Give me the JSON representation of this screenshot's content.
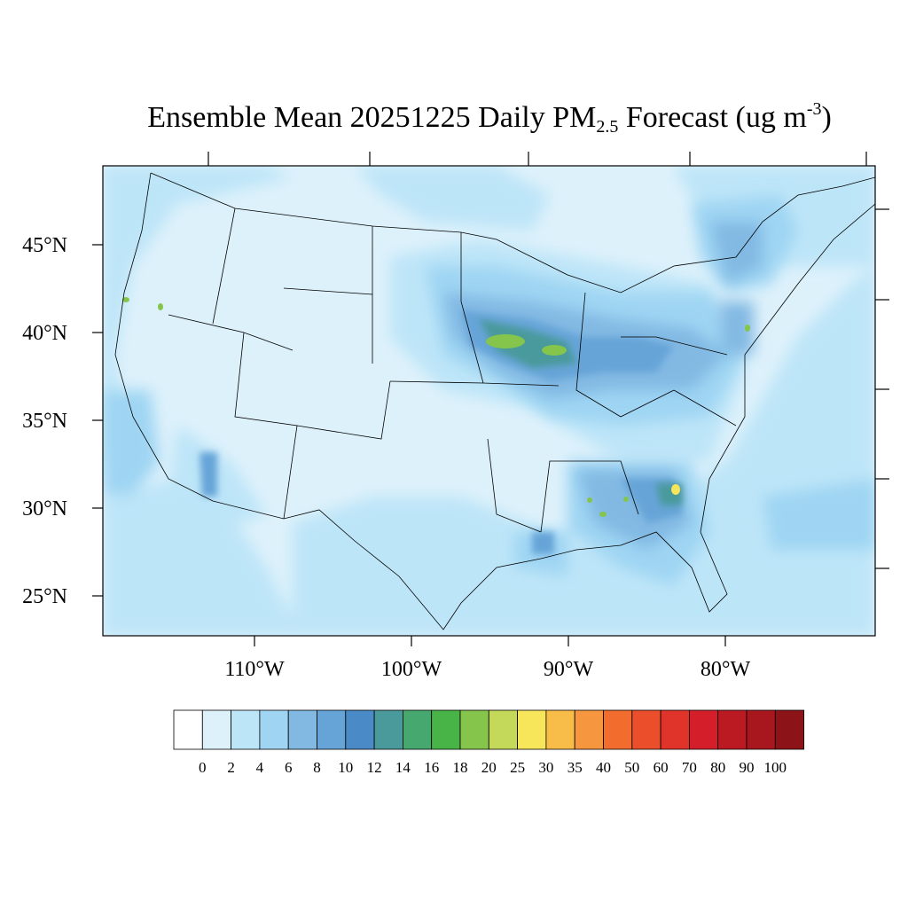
{
  "title": {
    "main": "Ensemble Mean 20251225 Daily PM",
    "subscript": "2.5",
    "units_open": " Forecast (ug m",
    "superscript": "-3",
    "units_close": ")"
  },
  "map": {
    "lat_labels": [
      "45°N",
      "40°N",
      "35°N",
      "30°N",
      "25°N"
    ],
    "lat_values": [
      45,
      40,
      35,
      30,
      25
    ],
    "lon_labels": [
      "110°W",
      "100°W",
      "90°W",
      "80°W"
    ],
    "lon_values": [
      -110,
      -100,
      -90,
      -80
    ],
    "lat_range": [
      22.8,
      49.5
    ],
    "lon_range": [
      -120,
      -71
    ],
    "background_color": "#ddf1fb"
  },
  "colorbar": {
    "tick_labels": [
      "0",
      "2",
      "4",
      "6",
      "8",
      "10",
      "12",
      "14",
      "16",
      "18",
      "20",
      "25",
      "30",
      "35",
      "40",
      "50",
      "60",
      "70",
      "80",
      "90",
      "100"
    ],
    "colors": [
      "#ffffff",
      "#ddf1fb",
      "#bde5f8",
      "#9fd5f3",
      "#82b9e3",
      "#66a4d8",
      "#4a8ac6",
      "#4a9a9c",
      "#46a86e",
      "#48b448",
      "#86c54c",
      "#c4d85a",
      "#f8e65a",
      "#f8bc48",
      "#f6963e",
      "#f26c2e",
      "#ea4e2a",
      "#e0342a",
      "#d41f2a",
      "#bc1a22",
      "#a8161e",
      "#8c1418"
    ]
  }
}
